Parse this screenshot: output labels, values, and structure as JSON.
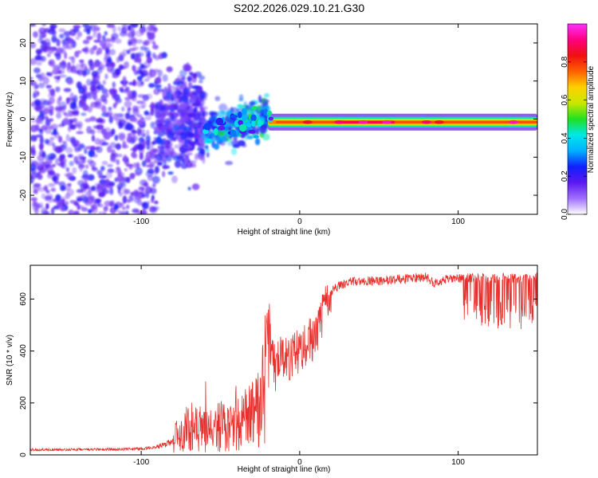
{
  "title": "S202.2026.029.10.21.G30",
  "colors": {
    "snr_line": "#e8312e",
    "axes": "#000000",
    "background": "#ffffff"
  },
  "chart_data": [
    {
      "type": "heatmap",
      "name": "spectrogram",
      "xlabel": "Height of straight line (km)",
      "ylabel": "Frequency (Hz)",
      "xlim": [
        -170,
        150
      ],
      "ylim": [
        -25,
        25
      ],
      "xticks": [
        -100,
        0,
        100
      ],
      "yticks": [
        -20,
        -10,
        0,
        10,
        20
      ],
      "grid": false,
      "colorbar": {
        "label": "Normalized spectral amplitude",
        "range": [
          0,
          1
        ],
        "ticks": [
          "0.0",
          "0.2",
          "0.4",
          "0.6",
          "0.8"
        ],
        "colormap": [
          "#ffffff",
          "#a070ff",
          "#5a18f0",
          "#1020ff",
          "#00b0ff",
          "#00e8e8",
          "#20e020",
          "#c8e800",
          "#ffd000",
          "#ff6000",
          "#f01010",
          "#ff0080",
          "#ff30ff"
        ]
      },
      "regions": [
        {
          "x_range": [
            -170,
            -90
          ],
          "description": "broadband noise",
          "freq_spread": 25,
          "amplitude_range": [
            0.0,
            0.15
          ]
        },
        {
          "x_range": [
            -90,
            -60
          ],
          "description": "noisy transition",
          "freq_spread": 12,
          "amplitude_range": [
            0.0,
            0.18
          ]
        },
        {
          "x_range": [
            -60,
            -20
          ],
          "description": "emerging carrier",
          "freq_spread": 6,
          "amplitude_range": [
            0.1,
            0.4
          ]
        },
        {
          "x_range": [
            -20,
            150
          ],
          "description": "clean carrier near 0 Hz",
          "freq_spread": 1.5,
          "amplitude_range": [
            0.3,
            1.0
          ]
        }
      ],
      "carrier_peaks": [
        {
          "x": 5,
          "amplitude": 0.85
        },
        {
          "x": 25,
          "amplitude": 0.9
        },
        {
          "x": 40,
          "amplitude": 0.95
        },
        {
          "x": 55,
          "amplitude": 0.95
        },
        {
          "x": 80,
          "amplitude": 0.9
        },
        {
          "x": 88,
          "amplitude": 0.85
        },
        {
          "x": 135,
          "amplitude": 0.95
        }
      ]
    },
    {
      "type": "line",
      "name": "snr",
      "xlabel": "Height of straight line (km)",
      "ylabel": "SNR (10 * v/v)",
      "xlim": [
        -170,
        150
      ],
      "ylim": [
        0,
        730
      ],
      "xticks": [
        -100,
        0,
        100
      ],
      "yticks": [
        0,
        200,
        400,
        600
      ],
      "grid": false,
      "series": [
        {
          "name": "SNR",
          "color": "#e8312e",
          "x": [
            -170,
            -150,
            -130,
            -110,
            -100,
            -90,
            -85,
            -80,
            -75,
            -70,
            -65,
            -60,
            -55,
            -50,
            -45,
            -40,
            -35,
            -30,
            -25,
            -22,
            -20,
            -17,
            -15,
            -12,
            -10,
            -7,
            -5,
            -2,
            0,
            3,
            5,
            8,
            10,
            12,
            14,
            16,
            18,
            20,
            25,
            30,
            40,
            50,
            60,
            70,
            80,
            85,
            90,
            95,
            100,
            110,
            120,
            130,
            140,
            150
          ],
          "values": [
            20,
            20,
            21,
            22,
            24,
            30,
            40,
            55,
            85,
            105,
            95,
            95,
            105,
            115,
            95,
            110,
            130,
            150,
            190,
            270,
            330,
            360,
            330,
            370,
            380,
            365,
            390,
            405,
            390,
            410,
            435,
            450,
            440,
            490,
            540,
            580,
            605,
            630,
            650,
            665,
            670,
            670,
            675,
            680,
            685,
            660,
            670,
            680,
            680,
            682,
            680,
            682,
            680,
            685
          ],
          "dropouts": [
            {
              "x_range": [
                103,
                150
              ],
              "min_value": 480
            }
          ]
        }
      ]
    }
  ]
}
